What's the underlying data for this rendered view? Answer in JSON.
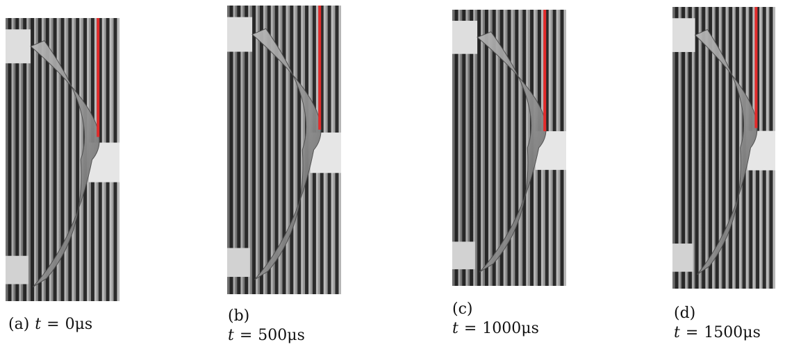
{
  "figure": {
    "panels": [
      {
        "id": "a",
        "tag": "(a)",
        "time_var": "t",
        "equals": "=",
        "time_value": "0",
        "time_unit": "μs",
        "red_line_end_ratio": 0.42,
        "scene_colors": {
          "background": "#8a8a8a",
          "stripe_dark": "#1b1b1b",
          "stripe_light": "#d8d8d8",
          "red_marker": "#e22b2b",
          "arc_highlight": "#b8b8b8",
          "arc_shadow": "#5a5a5a"
        }
      },
      {
        "id": "b",
        "tag": "(b)",
        "time_var": "t",
        "equals": "=",
        "time_value": "500",
        "time_unit": "μs",
        "red_line_end_ratio": 0.43,
        "scene_colors": {
          "background": "#8d8d8d",
          "stripe_dark": "#1d1d1d",
          "stripe_light": "#d6d6d6",
          "red_marker": "#e22b2b",
          "arc_highlight": "#bbbbbb",
          "arc_shadow": "#5a5a5a"
        }
      },
      {
        "id": "c",
        "tag": "(c)",
        "time_var": "t",
        "equals": "=",
        "time_value": "1000",
        "time_unit": "μs",
        "red_line_end_ratio": 0.44,
        "scene_colors": {
          "background": "#888888",
          "stripe_dark": "#1a1a1a",
          "stripe_light": "#d4d4d4",
          "red_marker": "#e22b2b",
          "arc_highlight": "#b4b4b4",
          "arc_shadow": "#575757"
        }
      },
      {
        "id": "d",
        "tag": "(d)",
        "time_var": "t",
        "equals": "=",
        "time_value": "1500",
        "time_unit": "μs",
        "red_line_end_ratio": 0.43,
        "scene_colors": {
          "background": "#8b8b8b",
          "stripe_dark": "#1c1c1c",
          "stripe_light": "#d7d7d7",
          "red_marker": "#e22b2b",
          "arc_highlight": "#b9b9b9",
          "arc_shadow": "#5b5b5b"
        }
      }
    ]
  }
}
